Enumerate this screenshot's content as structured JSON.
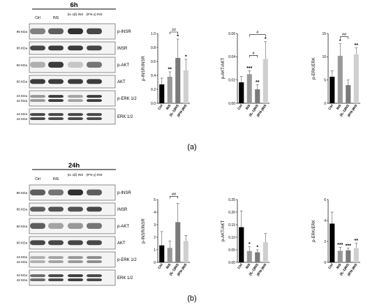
{
  "panels": [
    {
      "id": "a",
      "timepoint": "6h",
      "panel_label": "(a)",
      "lanes": [
        "Ctrl",
        "INS",
        "(IL-1β) INS",
        "(IFN-γ) INS"
      ],
      "blots": [
        {
          "kda": "95 KDa",
          "target": "p-INSR"
        },
        {
          "kda": "95 KDa",
          "target": "INSR"
        },
        {
          "kda": "60 KDa",
          "target": "p-AKT"
        },
        {
          "kda": "60 KDa",
          "target": "AKT"
        },
        {
          "kda": "44 KDa / 42 KDa",
          "target": "p-ERK 1/2"
        },
        {
          "kda": "44 KDa / 42 KDa",
          "target": "ERK 1/2"
        }
      ]
    },
    {
      "id": "b",
      "timepoint": "24h",
      "panel_label": "(b)",
      "lanes": [
        "Ctrl",
        "INS",
        "(IL-1β) INS",
        "(IFN-γ) INS"
      ],
      "blots": [
        {
          "kda": "95 KDa",
          "target": "p-INSR"
        },
        {
          "kda": "95 KDa",
          "target": "INSR"
        },
        {
          "kda": "60 KDa",
          "target": "p-AKT"
        },
        {
          "kda": "60 KDa",
          "target": "AKT"
        },
        {
          "kda": "44 KDa / 42 KDa",
          "target": "p-ERK 1/2"
        },
        {
          "kda": "44 KDa / 42 KDa",
          "target": "ERK 1/2"
        }
      ]
    }
  ],
  "chart_data": [
    {
      "panel": "a",
      "type": "bar",
      "ylabel": "p-INSR/INSR",
      "ylim": [
        0,
        1
      ],
      "categories": [
        "Ctrl",
        "INS",
        "(IL-1)INS",
        "(IFN-)INS"
      ],
      "values": [
        0.27,
        0.38,
        0.65,
        0.47
      ],
      "errors": [
        0.09,
        0.07,
        0.27,
        0.16
      ],
      "stars": [
        "",
        "**",
        "*",
        "*"
      ],
      "brackets": [
        {
          "from": 1,
          "to": 2,
          "label": "##"
        }
      ],
      "yticks": [
        "0.0",
        "0.2",
        "0.4",
        "0.6",
        "0.8",
        "1.0"
      ],
      "colors": [
        "#000000",
        "#999999",
        "#7a7a7a",
        "#cfcfcf"
      ]
    },
    {
      "panel": "a",
      "type": "bar",
      "ylabel": "p-AKT/AKT",
      "ylim": [
        0,
        0.06
      ],
      "categories": [
        "Ctrl",
        "INS",
        "(IL-1)INS",
        "(IFN-)INS"
      ],
      "values": [
        0.018,
        0.025,
        0.012,
        0.038
      ],
      "errors": [
        0.005,
        0.003,
        0.004,
        0.015
      ],
      "stars": [
        "",
        "***",
        "**",
        "*"
      ],
      "brackets": [
        {
          "from": 1,
          "to": 3,
          "label": "#"
        },
        {
          "from": 1,
          "to": 2,
          "label": "#"
        }
      ],
      "yticks": [
        "0.00",
        "0.02",
        "0.04",
        "0.06"
      ],
      "colors": [
        "#000000",
        "#999999",
        "#7a7a7a",
        "#cfcfcf"
      ]
    },
    {
      "panel": "a",
      "type": "bar",
      "ylabel": "p-ERK/ERK",
      "ylim": [
        0,
        15
      ],
      "categories": [
        "Ctrl",
        "INS",
        "(IL-1)INS",
        "(IFN-)INS"
      ],
      "values": [
        5.7,
        10.2,
        3.9,
        10.5
      ],
      "errors": [
        1.3,
        2.6,
        1.1,
        1.4
      ],
      "stars": [
        "",
        "*",
        "",
        "**"
      ],
      "brackets": [
        {
          "from": 1,
          "to": 2,
          "label": "##"
        }
      ],
      "yticks": [
        "0",
        "5",
        "10",
        "15"
      ],
      "colors": [
        "#000000",
        "#999999",
        "#7a7a7a",
        "#cfcfcf"
      ]
    },
    {
      "panel": "b",
      "type": "bar",
      "ylabel": "p-INSR/INSR",
      "ylim": [
        0,
        5
      ],
      "categories": [
        "Ctrl",
        "INS",
        "(IL-1)INS",
        "(IFN-)INS"
      ],
      "values": [
        1.35,
        1.15,
        3.2,
        1.7
      ],
      "errors": [
        1.1,
        0.55,
        1.5,
        0.45
      ],
      "stars": [
        "",
        "",
        "",
        ""
      ],
      "brackets": [
        {
          "from": 1,
          "to": 2,
          "label": "##"
        }
      ],
      "yticks": [
        "0",
        "1",
        "2",
        "3",
        "4",
        "5"
      ],
      "colors": [
        "#000000",
        "#999999",
        "#7a7a7a",
        "#cfcfcf"
      ]
    },
    {
      "panel": "b",
      "type": "bar",
      "ylabel": "p-AKT/AKT",
      "ylim": [
        0,
        0.25
      ],
      "categories": [
        "Ctrl",
        "INS",
        "(IL-1)INS",
        "(IFN-)INS"
      ],
      "values": [
        0.14,
        0.045,
        0.04,
        0.08
      ],
      "errors": [
        0.065,
        0.017,
        0.01,
        0.035
      ],
      "stars": [
        "",
        "*",
        "*",
        ""
      ],
      "brackets": [],
      "yticks": [
        "0.00",
        "0.05",
        "0.10",
        "0.15",
        "0.20",
        "0.25"
      ],
      "colors": [
        "#000000",
        "#999999",
        "#7a7a7a",
        "#cfcfcf"
      ]
    },
    {
      "panel": "b",
      "type": "bar",
      "ylabel": "p-ERK/ERK",
      "ylim": [
        0,
        6
      ],
      "categories": [
        "Ctrl",
        "INS",
        "(IL-1)INS",
        "(IFN-)INS"
      ],
      "values": [
        3.7,
        1.1,
        1.15,
        1.35
      ],
      "errors": [
        1.1,
        0.35,
        0.2,
        0.5
      ],
      "stars": [
        "",
        "***",
        "***",
        "**"
      ],
      "brackets": [],
      "yticks": [
        "0",
        "2",
        "4",
        "6"
      ],
      "colors": [
        "#000000",
        "#999999",
        "#7a7a7a",
        "#cfcfcf"
      ]
    }
  ]
}
